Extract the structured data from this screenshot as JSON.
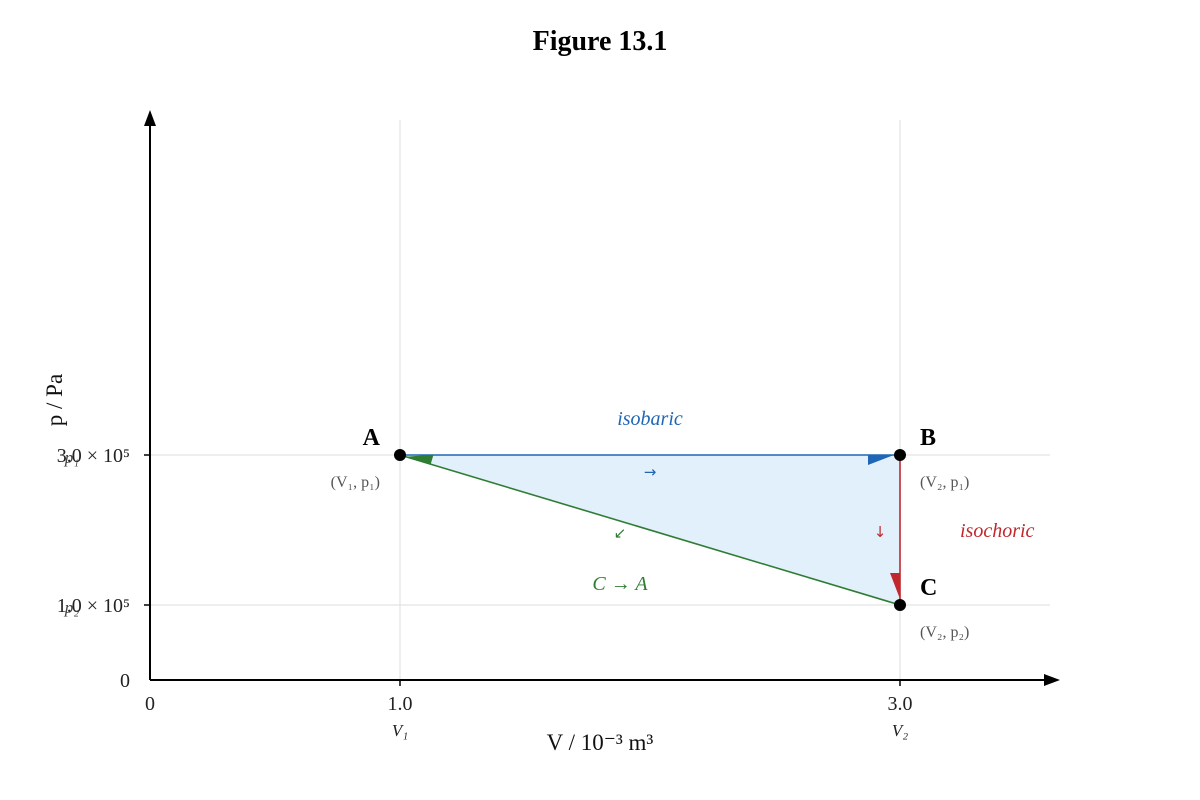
{
  "title": "Figure 13.1",
  "axes": {
    "x_label": "V / 10⁻³ m³",
    "y_label": "p / Pa",
    "x_ticks": [
      {
        "value": 0,
        "label": "0",
        "sub": ""
      },
      {
        "value": 1.0,
        "label": "1.0",
        "sub": "V₁"
      },
      {
        "value": 3.0,
        "label": "3.0",
        "sub": "V₂"
      }
    ],
    "y_ticks": [
      {
        "value": 0,
        "label": "0",
        "sub": ""
      },
      {
        "value": 1.0,
        "label": "1.0 × 10⁵",
        "sub": "p₂"
      },
      {
        "value": 3.0,
        "label": "3.0 × 10⁵",
        "sub": "p₁"
      }
    ],
    "x_range": [
      0,
      3.6
    ],
    "y_range": [
      0,
      4.0
    ],
    "grid": true
  },
  "points": [
    {
      "id": "A",
      "label": "A",
      "coord": "(V₁, p₁)",
      "v": 1.0,
      "p": 3.0
    },
    {
      "id": "B",
      "label": "B",
      "coord": "(V₂, p₁)",
      "v": 3.0,
      "p": 3.0
    },
    {
      "id": "C",
      "label": "C",
      "coord": "(V₂, p₂)",
      "v": 3.0,
      "p": 1.0
    }
  ],
  "processes": [
    {
      "from": "A",
      "to": "B",
      "label": "isobaric",
      "direction_glyph": "→",
      "color": "#1f66b5"
    },
    {
      "from": "B",
      "to": "C",
      "label": "isochoric",
      "direction_glyph": "↓",
      "color": "#c0282d"
    },
    {
      "from": "C",
      "to": "A",
      "label": "C → A",
      "direction_glyph": "↙",
      "color": "#2e7d32"
    }
  ],
  "colors": {
    "fill": "#e2f0fb",
    "grid": "#dddddd",
    "axis": "#000000"
  }
}
